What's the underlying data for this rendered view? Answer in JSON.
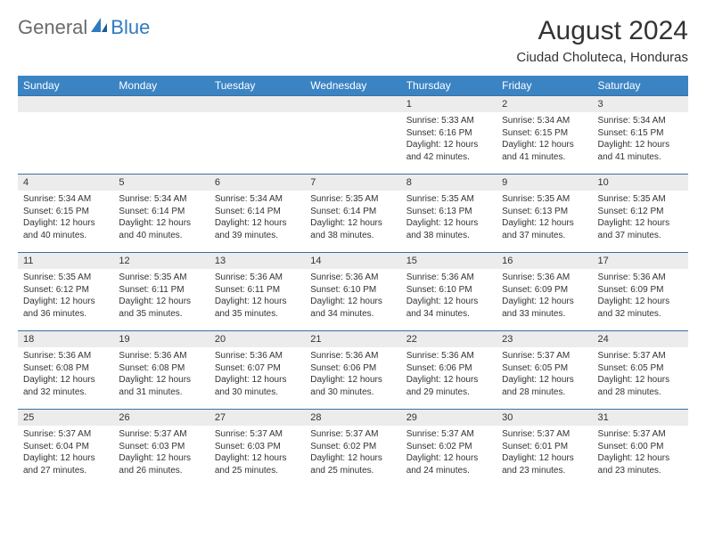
{
  "logo": {
    "general": "General",
    "blue": "Blue"
  },
  "title": "August 2024",
  "location": "Ciudad Choluteca, Honduras",
  "colors": {
    "header_bg": "#3b84c4",
    "header_text": "#ffffff",
    "daynum_bg": "#ececec",
    "row_border": "#3b6fa0",
    "logo_gray": "#6b6b6b",
    "logo_blue": "#2f7bbf"
  },
  "weekdays": [
    "Sunday",
    "Monday",
    "Tuesday",
    "Wednesday",
    "Thursday",
    "Friday",
    "Saturday"
  ],
  "weeks": [
    [
      {
        "blank": true
      },
      {
        "blank": true
      },
      {
        "blank": true
      },
      {
        "blank": true
      },
      {
        "day": "1",
        "sunrise": "Sunrise: 5:33 AM",
        "sunset": "Sunset: 6:16 PM",
        "daylight1": "Daylight: 12 hours",
        "daylight2": "and 42 minutes."
      },
      {
        "day": "2",
        "sunrise": "Sunrise: 5:34 AM",
        "sunset": "Sunset: 6:15 PM",
        "daylight1": "Daylight: 12 hours",
        "daylight2": "and 41 minutes."
      },
      {
        "day": "3",
        "sunrise": "Sunrise: 5:34 AM",
        "sunset": "Sunset: 6:15 PM",
        "daylight1": "Daylight: 12 hours",
        "daylight2": "and 41 minutes."
      }
    ],
    [
      {
        "day": "4",
        "sunrise": "Sunrise: 5:34 AM",
        "sunset": "Sunset: 6:15 PM",
        "daylight1": "Daylight: 12 hours",
        "daylight2": "and 40 minutes."
      },
      {
        "day": "5",
        "sunrise": "Sunrise: 5:34 AM",
        "sunset": "Sunset: 6:14 PM",
        "daylight1": "Daylight: 12 hours",
        "daylight2": "and 40 minutes."
      },
      {
        "day": "6",
        "sunrise": "Sunrise: 5:34 AM",
        "sunset": "Sunset: 6:14 PM",
        "daylight1": "Daylight: 12 hours",
        "daylight2": "and 39 minutes."
      },
      {
        "day": "7",
        "sunrise": "Sunrise: 5:35 AM",
        "sunset": "Sunset: 6:14 PM",
        "daylight1": "Daylight: 12 hours",
        "daylight2": "and 38 minutes."
      },
      {
        "day": "8",
        "sunrise": "Sunrise: 5:35 AM",
        "sunset": "Sunset: 6:13 PM",
        "daylight1": "Daylight: 12 hours",
        "daylight2": "and 38 minutes."
      },
      {
        "day": "9",
        "sunrise": "Sunrise: 5:35 AM",
        "sunset": "Sunset: 6:13 PM",
        "daylight1": "Daylight: 12 hours",
        "daylight2": "and 37 minutes."
      },
      {
        "day": "10",
        "sunrise": "Sunrise: 5:35 AM",
        "sunset": "Sunset: 6:12 PM",
        "daylight1": "Daylight: 12 hours",
        "daylight2": "and 37 minutes."
      }
    ],
    [
      {
        "day": "11",
        "sunrise": "Sunrise: 5:35 AM",
        "sunset": "Sunset: 6:12 PM",
        "daylight1": "Daylight: 12 hours",
        "daylight2": "and 36 minutes."
      },
      {
        "day": "12",
        "sunrise": "Sunrise: 5:35 AM",
        "sunset": "Sunset: 6:11 PM",
        "daylight1": "Daylight: 12 hours",
        "daylight2": "and 35 minutes."
      },
      {
        "day": "13",
        "sunrise": "Sunrise: 5:36 AM",
        "sunset": "Sunset: 6:11 PM",
        "daylight1": "Daylight: 12 hours",
        "daylight2": "and 35 minutes."
      },
      {
        "day": "14",
        "sunrise": "Sunrise: 5:36 AM",
        "sunset": "Sunset: 6:10 PM",
        "daylight1": "Daylight: 12 hours",
        "daylight2": "and 34 minutes."
      },
      {
        "day": "15",
        "sunrise": "Sunrise: 5:36 AM",
        "sunset": "Sunset: 6:10 PM",
        "daylight1": "Daylight: 12 hours",
        "daylight2": "and 34 minutes."
      },
      {
        "day": "16",
        "sunrise": "Sunrise: 5:36 AM",
        "sunset": "Sunset: 6:09 PM",
        "daylight1": "Daylight: 12 hours",
        "daylight2": "and 33 minutes."
      },
      {
        "day": "17",
        "sunrise": "Sunrise: 5:36 AM",
        "sunset": "Sunset: 6:09 PM",
        "daylight1": "Daylight: 12 hours",
        "daylight2": "and 32 minutes."
      }
    ],
    [
      {
        "day": "18",
        "sunrise": "Sunrise: 5:36 AM",
        "sunset": "Sunset: 6:08 PM",
        "daylight1": "Daylight: 12 hours",
        "daylight2": "and 32 minutes."
      },
      {
        "day": "19",
        "sunrise": "Sunrise: 5:36 AM",
        "sunset": "Sunset: 6:08 PM",
        "daylight1": "Daylight: 12 hours",
        "daylight2": "and 31 minutes."
      },
      {
        "day": "20",
        "sunrise": "Sunrise: 5:36 AM",
        "sunset": "Sunset: 6:07 PM",
        "daylight1": "Daylight: 12 hours",
        "daylight2": "and 30 minutes."
      },
      {
        "day": "21",
        "sunrise": "Sunrise: 5:36 AM",
        "sunset": "Sunset: 6:06 PM",
        "daylight1": "Daylight: 12 hours",
        "daylight2": "and 30 minutes."
      },
      {
        "day": "22",
        "sunrise": "Sunrise: 5:36 AM",
        "sunset": "Sunset: 6:06 PM",
        "daylight1": "Daylight: 12 hours",
        "daylight2": "and 29 minutes."
      },
      {
        "day": "23",
        "sunrise": "Sunrise: 5:37 AM",
        "sunset": "Sunset: 6:05 PM",
        "daylight1": "Daylight: 12 hours",
        "daylight2": "and 28 minutes."
      },
      {
        "day": "24",
        "sunrise": "Sunrise: 5:37 AM",
        "sunset": "Sunset: 6:05 PM",
        "daylight1": "Daylight: 12 hours",
        "daylight2": "and 28 minutes."
      }
    ],
    [
      {
        "day": "25",
        "sunrise": "Sunrise: 5:37 AM",
        "sunset": "Sunset: 6:04 PM",
        "daylight1": "Daylight: 12 hours",
        "daylight2": "and 27 minutes."
      },
      {
        "day": "26",
        "sunrise": "Sunrise: 5:37 AM",
        "sunset": "Sunset: 6:03 PM",
        "daylight1": "Daylight: 12 hours",
        "daylight2": "and 26 minutes."
      },
      {
        "day": "27",
        "sunrise": "Sunrise: 5:37 AM",
        "sunset": "Sunset: 6:03 PM",
        "daylight1": "Daylight: 12 hours",
        "daylight2": "and 25 minutes."
      },
      {
        "day": "28",
        "sunrise": "Sunrise: 5:37 AM",
        "sunset": "Sunset: 6:02 PM",
        "daylight1": "Daylight: 12 hours",
        "daylight2": "and 25 minutes."
      },
      {
        "day": "29",
        "sunrise": "Sunrise: 5:37 AM",
        "sunset": "Sunset: 6:02 PM",
        "daylight1": "Daylight: 12 hours",
        "daylight2": "and 24 minutes."
      },
      {
        "day": "30",
        "sunrise": "Sunrise: 5:37 AM",
        "sunset": "Sunset: 6:01 PM",
        "daylight1": "Daylight: 12 hours",
        "daylight2": "and 23 minutes."
      },
      {
        "day": "31",
        "sunrise": "Sunrise: 5:37 AM",
        "sunset": "Sunset: 6:00 PM",
        "daylight1": "Daylight: 12 hours",
        "daylight2": "and 23 minutes."
      }
    ]
  ]
}
